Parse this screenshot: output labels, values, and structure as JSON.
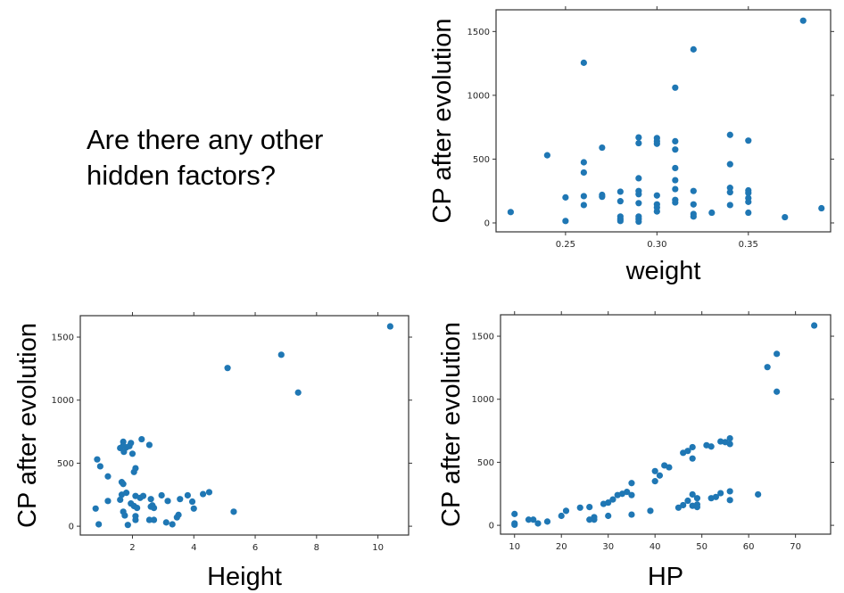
{
  "slide": {
    "question": "Are there any other hidden factors?"
  },
  "chart_data": [
    {
      "id": "weight",
      "type": "scatter",
      "title": "",
      "xlabel": "weight",
      "ylabel": "CP after evolution",
      "xlim": [
        0.212,
        0.395
      ],
      "ylim": [
        -70,
        1670
      ],
      "xticks": [
        0.25,
        0.3,
        0.35
      ],
      "xtick_labels": [
        "0.25",
        "0.30",
        "0.35"
      ],
      "yticks": [
        0,
        500,
        1000,
        1500
      ],
      "ytick_labels": [
        "0",
        "500",
        "1000",
        "1500"
      ],
      "grid": false,
      "color": "#1f77b4",
      "points": [
        [
          0.22,
          85
        ],
        [
          0.24,
          530
        ],
        [
          0.25,
          200
        ],
        [
          0.25,
          15
        ],
        [
          0.26,
          1255
        ],
        [
          0.26,
          475
        ],
        [
          0.26,
          395
        ],
        [
          0.26,
          210
        ],
        [
          0.26,
          140
        ],
        [
          0.27,
          590
        ],
        [
          0.27,
          220
        ],
        [
          0.27,
          205
        ],
        [
          0.28,
          245
        ],
        [
          0.28,
          170
        ],
        [
          0.28,
          50
        ],
        [
          0.28,
          30
        ],
        [
          0.28,
          15
        ],
        [
          0.29,
          670
        ],
        [
          0.29,
          625
        ],
        [
          0.29,
          350
        ],
        [
          0.29,
          250
        ],
        [
          0.29,
          225
        ],
        [
          0.29,
          155
        ],
        [
          0.29,
          50
        ],
        [
          0.29,
          30
        ],
        [
          0.29,
          10
        ],
        [
          0.3,
          665
        ],
        [
          0.3,
          640
        ],
        [
          0.3,
          620
        ],
        [
          0.3,
          215
        ],
        [
          0.3,
          145
        ],
        [
          0.3,
          120
        ],
        [
          0.3,
          90
        ],
        [
          0.31,
          1060
        ],
        [
          0.31,
          640
        ],
        [
          0.31,
          575
        ],
        [
          0.31,
          430
        ],
        [
          0.31,
          335
        ],
        [
          0.31,
          265
        ],
        [
          0.31,
          180
        ],
        [
          0.31,
          160
        ],
        [
          0.32,
          1360
        ],
        [
          0.32,
          250
        ],
        [
          0.32,
          145
        ],
        [
          0.32,
          70
        ],
        [
          0.32,
          50
        ],
        [
          0.33,
          80
        ],
        [
          0.34,
          690
        ],
        [
          0.34,
          460
        ],
        [
          0.34,
          275
        ],
        [
          0.34,
          240
        ],
        [
          0.34,
          140
        ],
        [
          0.35,
          645
        ],
        [
          0.35,
          255
        ],
        [
          0.35,
          235
        ],
        [
          0.35,
          195
        ],
        [
          0.35,
          165
        ],
        [
          0.35,
          80
        ],
        [
          0.37,
          45
        ],
        [
          0.38,
          1585
        ],
        [
          0.39,
          115
        ]
      ]
    },
    {
      "id": "height",
      "type": "scatter",
      "title": "",
      "xlabel": "Height",
      "ylabel": "CP after evolution",
      "xlim": [
        0.3,
        11.0
      ],
      "ylim": [
        -70,
        1670
      ],
      "xticks": [
        2,
        4,
        6,
        8,
        10
      ],
      "xtick_labels": [
        "2",
        "4",
        "6",
        "8",
        "10"
      ],
      "yticks": [
        0,
        500,
        1000,
        1500
      ],
      "ytick_labels": [
        "0",
        "500",
        "1000",
        "1500"
      ],
      "grid": false,
      "color": "#1f77b4",
      "points": [
        [
          0.8,
          140
        ],
        [
          0.85,
          530
        ],
        [
          0.9,
          15
        ],
        [
          0.95,
          475
        ],
        [
          1.2,
          395
        ],
        [
          1.2,
          200
        ],
        [
          1.6,
          620
        ],
        [
          1.6,
          210
        ],
        [
          1.65,
          350
        ],
        [
          1.65,
          250
        ],
        [
          1.7,
          670
        ],
        [
          1.7,
          640
        ],
        [
          1.7,
          335
        ],
        [
          1.7,
          115
        ],
        [
          1.72,
          590
        ],
        [
          1.75,
          85
        ],
        [
          1.8,
          625
        ],
        [
          1.8,
          265
        ],
        [
          1.85,
          10
        ],
        [
          1.9,
          635
        ],
        [
          1.95,
          660
        ],
        [
          1.95,
          180
        ],
        [
          2.0,
          575
        ],
        [
          2.05,
          430
        ],
        [
          2.05,
          160
        ],
        [
          2.1,
          460
        ],
        [
          2.1,
          240
        ],
        [
          2.1,
          80
        ],
        [
          2.1,
          50
        ],
        [
          2.15,
          145
        ],
        [
          2.25,
          225
        ],
        [
          2.3,
          690
        ],
        [
          2.35,
          240
        ],
        [
          2.55,
          645
        ],
        [
          2.55,
          50
        ],
        [
          2.6,
          215
        ],
        [
          2.6,
          155
        ],
        [
          2.65,
          165
        ],
        [
          2.7,
          50
        ],
        [
          2.7,
          145
        ],
        [
          2.95,
          245
        ],
        [
          3.1,
          30
        ],
        [
          3.15,
          200
        ],
        [
          3.3,
          15
        ],
        [
          3.45,
          70
        ],
        [
          3.5,
          90
        ],
        [
          3.55,
          215
        ],
        [
          3.8,
          245
        ],
        [
          3.95,
          195
        ],
        [
          4.0,
          140
        ],
        [
          4.3,
          255
        ],
        [
          4.5,
          270
        ],
        [
          5.1,
          1255
        ],
        [
          5.3,
          115
        ],
        [
          6.85,
          1360
        ],
        [
          7.4,
          1060
        ],
        [
          10.4,
          1585
        ]
      ]
    },
    {
      "id": "hp",
      "type": "scatter",
      "title": "",
      "xlabel": "HP",
      "ylabel": "CP after evolution",
      "xlim": [
        7,
        77.5
      ],
      "ylim": [
        -70,
        1670
      ],
      "xticks": [
        10,
        20,
        30,
        40,
        50,
        60,
        70
      ],
      "xtick_labels": [
        "10",
        "20",
        "30",
        "40",
        "50",
        "60",
        "70"
      ],
      "yticks": [
        0,
        500,
        1000,
        1500
      ],
      "ytick_labels": [
        "0",
        "500",
        "1000",
        "1500"
      ],
      "grid": false,
      "color": "#1f77b4",
      "points": [
        [
          10,
          90
        ],
        [
          10,
          15
        ],
        [
          10,
          5
        ],
        [
          13,
          45
        ],
        [
          14,
          45
        ],
        [
          15,
          15
        ],
        [
          17,
          30
        ],
        [
          20,
          75
        ],
        [
          21,
          115
        ],
        [
          24,
          140
        ],
        [
          26,
          145
        ],
        [
          26,
          45
        ],
        [
          27,
          65
        ],
        [
          27,
          45
        ],
        [
          29,
          170
        ],
        [
          30,
          180
        ],
        [
          30,
          75
        ],
        [
          31,
          205
        ],
        [
          32,
          240
        ],
        [
          33,
          250
        ],
        [
          34,
          265
        ],
        [
          35,
          335
        ],
        [
          35,
          240
        ],
        [
          35,
          85
        ],
        [
          39,
          115
        ],
        [
          40,
          430
        ],
        [
          40,
          350
        ],
        [
          41,
          395
        ],
        [
          42,
          475
        ],
        [
          43,
          460
        ],
        [
          45,
          140
        ],
        [
          46,
          575
        ],
        [
          46,
          160
        ],
        [
          47,
          590
        ],
        [
          47,
          195
        ],
        [
          48,
          620
        ],
        [
          48,
          530
        ],
        [
          48,
          245
        ],
        [
          48,
          155
        ],
        [
          49,
          215
        ],
        [
          49,
          165
        ],
        [
          49,
          145
        ],
        [
          51,
          635
        ],
        [
          52,
          625
        ],
        [
          52,
          215
        ],
        [
          53,
          225
        ],
        [
          54,
          665
        ],
        [
          54,
          255
        ],
        [
          55,
          660
        ],
        [
          56,
          690
        ],
        [
          56,
          645
        ],
        [
          56,
          270
        ],
        [
          56,
          200
        ],
        [
          62,
          245
        ],
        [
          64,
          1255
        ],
        [
          66,
          1360
        ],
        [
          66,
          1060
        ],
        [
          74,
          1585
        ]
      ]
    }
  ]
}
